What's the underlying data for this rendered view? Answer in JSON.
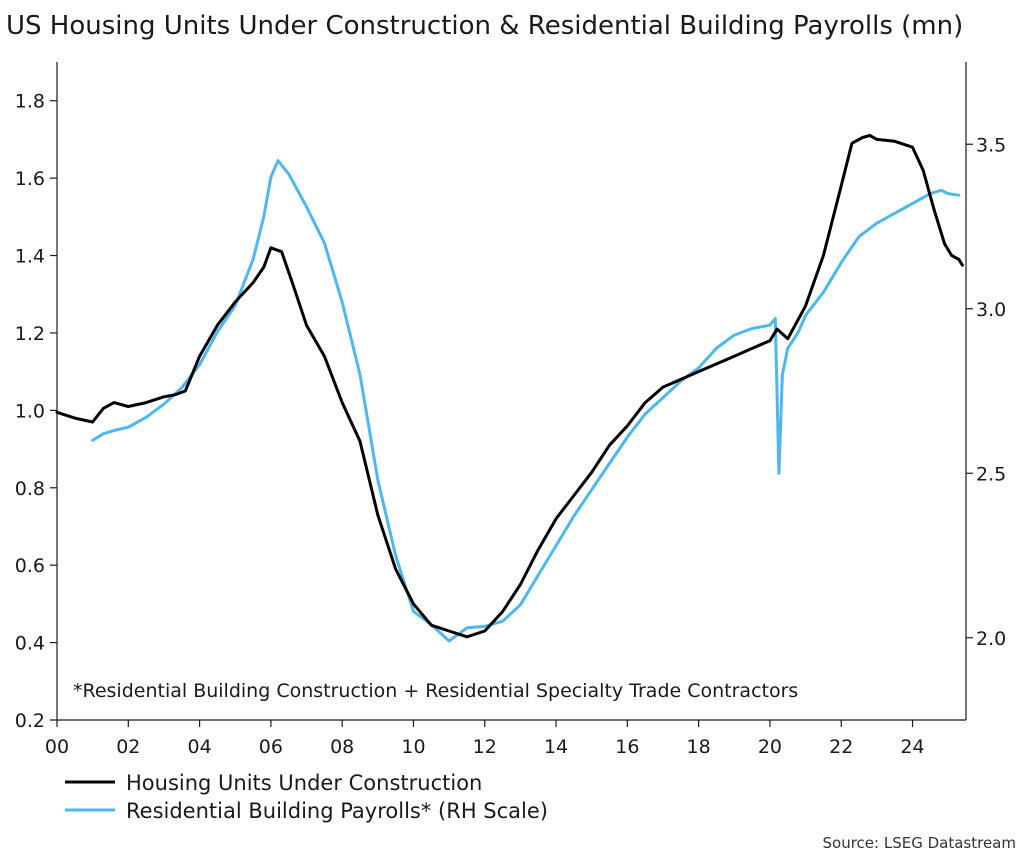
{
  "chart_data": {
    "type": "line",
    "title": "US Housing Units Under Construction & Residential Building Payrolls (mn)",
    "xlabel": "",
    "ylabel": "",
    "x_ticks": [
      0,
      2,
      4,
      6,
      8,
      10,
      12,
      14,
      16,
      18,
      20,
      22,
      24
    ],
    "x_tick_labels": [
      "00",
      "02",
      "04",
      "06",
      "08",
      "10",
      "12",
      "14",
      "16",
      "18",
      "20",
      "22",
      "24"
    ],
    "xlim": [
      0,
      25.5
    ],
    "ylim_left": [
      0.2,
      1.9
    ],
    "left_ticks": [
      0.2,
      0.4,
      0.6,
      0.8,
      1.0,
      1.2,
      1.4,
      1.6,
      1.8
    ],
    "left_tick_labels": [
      "0.2",
      "0.4",
      "0.6",
      "0.8",
      "1.0",
      "1.2",
      "1.4",
      "1.6",
      "1.8"
    ],
    "ylim_right": [
      1.75,
      3.75
    ],
    "right_ticks": [
      2.0,
      2.5,
      3.0,
      3.5
    ],
    "right_tick_labels": [
      "2.0",
      "2.5",
      "3.0",
      "3.5"
    ],
    "annotation": "*Residential Building Construction + Residential Specialty Trade Contractors",
    "source": "Source: LSEG Datastream",
    "series": [
      {
        "name": "Housing Units Under Construction",
        "axis": "left",
        "color": "#000000",
        "x": [
          0,
          0.5,
          1.0,
          1.3,
          1.6,
          2.0,
          2.5,
          3.0,
          3.3,
          3.6,
          4.0,
          4.5,
          5.0,
          5.5,
          5.8,
          6.0,
          6.3,
          6.6,
          7.0,
          7.5,
          8.0,
          8.5,
          9.0,
          9.5,
          10.0,
          10.5,
          11.0,
          11.5,
          12.0,
          12.5,
          13.0,
          13.5,
          14.0,
          14.5,
          15.0,
          15.5,
          16.0,
          16.5,
          17.0,
          17.5,
          18.0,
          18.5,
          19.0,
          19.5,
          20.0,
          20.2,
          20.5,
          21.0,
          21.5,
          22.0,
          22.3,
          22.6,
          22.8,
          23.0,
          23.5,
          24.0,
          24.3,
          24.6,
          24.9,
          25.1,
          25.3,
          25.4
        ],
        "values": [
          0.995,
          0.98,
          0.97,
          1.005,
          1.02,
          1.01,
          1.02,
          1.035,
          1.04,
          1.05,
          1.14,
          1.22,
          1.28,
          1.33,
          1.37,
          1.42,
          1.41,
          1.33,
          1.22,
          1.14,
          1.02,
          0.92,
          0.73,
          0.59,
          0.5,
          0.445,
          0.43,
          0.415,
          0.43,
          0.48,
          0.55,
          0.64,
          0.72,
          0.78,
          0.84,
          0.91,
          0.96,
          1.02,
          1.06,
          1.08,
          1.1,
          1.12,
          1.14,
          1.16,
          1.18,
          1.21,
          1.185,
          1.27,
          1.4,
          1.58,
          1.69,
          1.705,
          1.71,
          1.7,
          1.695,
          1.68,
          1.62,
          1.52,
          1.43,
          1.4,
          1.39,
          1.375
        ]
      },
      {
        "name": "Residential Building Payrolls* (RH Scale)",
        "axis": "right",
        "color": "#4db8f0",
        "x": [
          1.0,
          1.3,
          1.6,
          2.0,
          2.5,
          3.0,
          3.5,
          4.0,
          4.5,
          5.0,
          5.5,
          5.8,
          6.0,
          6.2,
          6.5,
          6.8,
          7.0,
          7.5,
          8.0,
          8.5,
          9.0,
          9.5,
          10.0,
          10.5,
          11.0,
          11.5,
          12.0,
          12.5,
          13.0,
          13.5,
          14.0,
          14.5,
          15.0,
          15.5,
          16.0,
          16.5,
          17.0,
          17.5,
          18.0,
          18.5,
          19.0,
          19.5,
          20.0,
          20.15,
          20.25,
          20.35,
          20.5,
          20.8,
          21.0,
          21.5,
          22.0,
          22.5,
          23.0,
          23.5,
          24.0,
          24.5,
          24.8,
          25.0,
          25.3
        ],
        "values": [
          2.6,
          2.62,
          2.63,
          2.64,
          2.67,
          2.71,
          2.76,
          2.83,
          2.93,
          3.01,
          3.15,
          3.28,
          3.4,
          3.45,
          3.41,
          3.35,
          3.31,
          3.2,
          3.02,
          2.8,
          2.48,
          2.25,
          2.08,
          2.04,
          1.99,
          2.03,
          2.035,
          2.05,
          2.1,
          2.19,
          2.28,
          2.37,
          2.45,
          2.53,
          2.61,
          2.68,
          2.73,
          2.78,
          2.82,
          2.88,
          2.92,
          2.94,
          2.95,
          2.97,
          2.5,
          2.8,
          2.88,
          2.93,
          2.98,
          3.05,
          3.14,
          3.22,
          3.26,
          3.29,
          3.32,
          3.35,
          3.36,
          3.35,
          3.345
        ]
      }
    ]
  }
}
